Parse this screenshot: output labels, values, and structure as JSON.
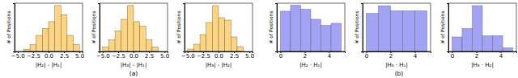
{
  "chart_data": [
    {
      "type": "histogram",
      "x_label": "|H₂| - |H₁|",
      "y_label": "# of Positions",
      "color": "#fdd47f",
      "bins": [
        -4,
        -3,
        -2,
        -1,
        0,
        1,
        2,
        3,
        4,
        5
      ],
      "values": [
        1,
        3,
        7,
        10,
        13,
        20,
        16,
        7,
        3
      ],
      "xlim": [
        -5.5,
        5.5
      ],
      "xticks": [
        {
          "value": -5,
          "label": "−5.0"
        },
        {
          "value": -2.5,
          "label": "−2.5"
        },
        {
          "value": 0,
          "label": "0.0"
        },
        {
          "value": 2.5,
          "label": "2.5"
        },
        {
          "value": 5,
          "label": "5.0"
        }
      ],
      "ylim": [
        0,
        21
      ],
      "tick_labels": "x"
    },
    {
      "type": "histogram",
      "x_label": "|H₃| - |H₁|",
      "y_label": "# of Positions",
      "color": "#fdd47f",
      "bins": [
        -5,
        -4,
        -3,
        -2,
        -1,
        0,
        1,
        2,
        3,
        4
      ],
      "values": [
        2,
        5,
        9,
        14,
        20,
        13,
        11,
        5,
        2
      ],
      "xlim": [
        -5.5,
        5.5
      ],
      "xticks": [
        {
          "value": -5,
          "label": "−5.0"
        },
        {
          "value": -2.5,
          "label": "−2.5"
        },
        {
          "value": 0,
          "label": "0.0"
        },
        {
          "value": 2.5,
          "label": "2.5"
        },
        {
          "value": 5,
          "label": "5.0"
        }
      ],
      "ylim": [
        0,
        21
      ],
      "tick_labels": "x"
    },
    {
      "type": "histogram",
      "x_label": "|H₃| - |H₂|",
      "y_label": "# of Positions",
      "color": "#fdd47f",
      "bins": [
        -5,
        -4,
        -3,
        -2,
        -1,
        0,
        1,
        2,
        3,
        4
      ],
      "values": [
        1,
        3,
        7,
        12,
        19,
        14,
        13,
        6,
        2
      ],
      "xlim": [
        -5.5,
        5.5
      ],
      "xticks": [
        {
          "value": -5,
          "label": "−5.0"
        },
        {
          "value": -2.5,
          "label": "−2.5"
        },
        {
          "value": 0,
          "label": "0.0"
        },
        {
          "value": 2.5,
          "label": "2.5"
        },
        {
          "value": 5,
          "label": "5.0"
        }
      ],
      "ylim": [
        0,
        20
      ],
      "tick_labels": "x"
    },
    {
      "type": "histogram",
      "x_label": "|H₂ · H₁|",
      "y_label": "# of Positions",
      "color": "#a3a3f5",
      "bins": [
        0,
        0.83,
        1.67,
        2.5,
        3.33,
        4.17,
        5
      ],
      "values": [
        20,
        23,
        21,
        16,
        13,
        14
      ],
      "xlim": [
        -0.3,
        5.3
      ],
      "xticks": [
        0,
        2,
        4
      ],
      "ylim": [
        0,
        24
      ],
      "tick_labels": "x"
    },
    {
      "type": "histogram",
      "x_label": "|H₃ · H₁|",
      "y_label": "# of Positions",
      "color": "#a3a3f5",
      "bins": [
        0,
        1,
        2,
        3,
        4,
        5
      ],
      "values": [
        15,
        18,
        16,
        16,
        16
      ],
      "xlim": [
        -0.3,
        5.3
      ],
      "xticks": [
        0,
        2,
        4
      ],
      "ylim": [
        0,
        19
      ],
      "tick_labels": "x"
    },
    {
      "type": "histogram",
      "x_label": "|H₃ · H₂|",
      "y_label": "# of Positions",
      "color": "#a3a3f5",
      "bins": [
        0,
        0.83,
        1.67,
        2.5,
        3.33,
        4.17,
        5
      ],
      "values": [
        12,
        19,
        38,
        13,
        13,
        3
      ],
      "xlim": [
        -0.3,
        5.3
      ],
      "xticks": [
        0,
        2,
        4
      ],
      "ylim": [
        0,
        40
      ],
      "tick_labels": "x"
    }
  ],
  "panel_labels": [
    "(a)",
    "(b)"
  ]
}
